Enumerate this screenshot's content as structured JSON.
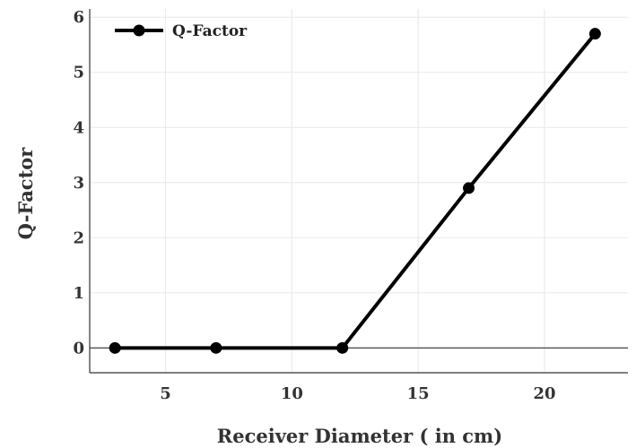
{
  "chart_data": {
    "type": "line",
    "title": "",
    "xlabel": "Receiver Diameter ( in cm)",
    "ylabel": "Q-Factor",
    "xlim": [
      2,
      23.3
    ],
    "ylim": [
      -0.45,
      6.15
    ],
    "xticks": [
      5,
      10,
      15,
      20
    ],
    "yticks": [
      0,
      1,
      2,
      3,
      4,
      5,
      6
    ],
    "grid": true,
    "legend": "top-left",
    "series": [
      {
        "name": "Q-Factor",
        "color": "#000000",
        "x": [
          3,
          7,
          12,
          17,
          22
        ],
        "y": [
          0,
          0,
          0,
          2.9,
          5.7
        ]
      }
    ]
  }
}
